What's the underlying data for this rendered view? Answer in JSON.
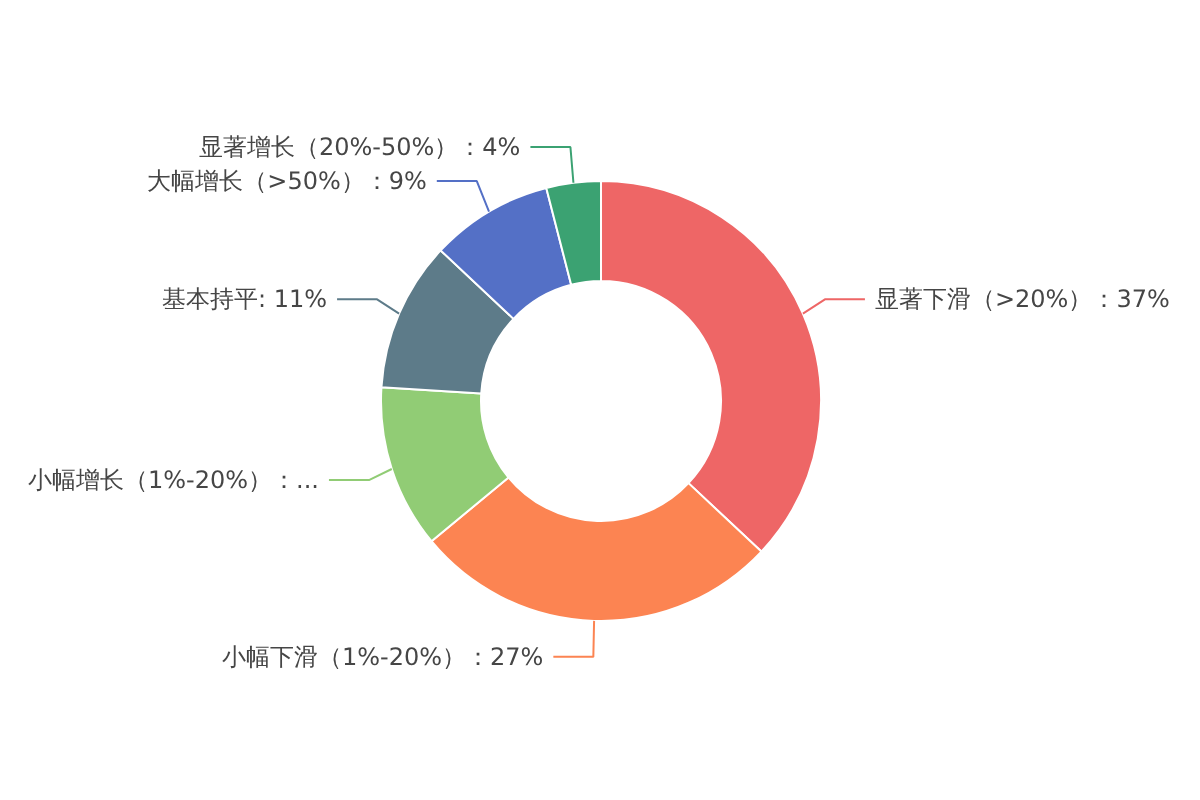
{
  "chart_data": {
    "type": "donut",
    "categories": [
      "显著下滑（>20%）",
      "小幅下滑（1%-20%）",
      "小幅增长（1%-20%）",
      "基本持平",
      "大幅增长（>50%）",
      "显著增长（20%-50%）"
    ],
    "values": [
      37,
      27,
      12,
      11,
      9,
      4
    ],
    "colors": [
      "#ee6666",
      "#fc8452",
      "#91cc75",
      "#5d7b89",
      "#5470c6",
      "#3ba272"
    ],
    "value_labels": [
      "：37%",
      "：27%",
      "：...",
      ": 11%",
      "：9%",
      "：4%"
    ],
    "legend": false
  }
}
